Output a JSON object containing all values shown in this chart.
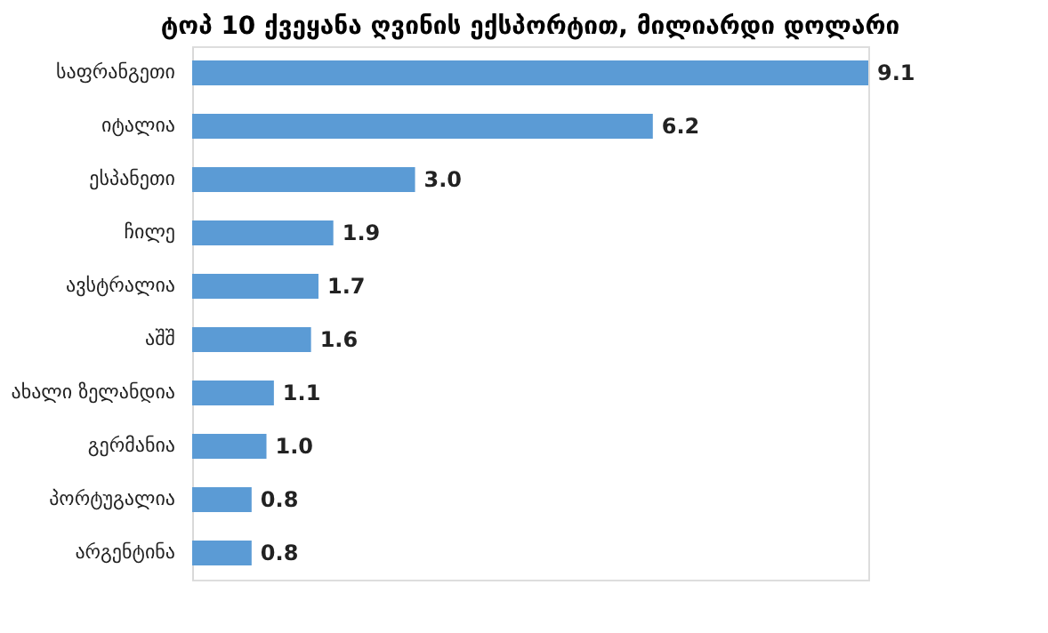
{
  "chart_data": {
    "type": "bar",
    "orientation": "horizontal",
    "title": "ტოპ 10 ქვეყანა ღვინის ექსპორტით, მილიარდი დოლარი",
    "categories": [
      "საფრანგეთი",
      "იტალია",
      "ესპანეთი",
      "ჩილე",
      "ავსტრალია",
      "აშშ",
      "ახალი ზელანდია",
      "გერმანია",
      "პორტუგალია",
      "არგენტინა"
    ],
    "values": [
      9.1,
      6.2,
      3.0,
      1.9,
      1.7,
      1.6,
      1.1,
      1.0,
      0.8,
      0.8
    ],
    "value_labels": [
      "9.1",
      "6.2",
      "3.0",
      "1.9",
      "1.7",
      "1.6",
      "1.1",
      "1.0",
      "0.8",
      "0.8"
    ],
    "color": "#5b9bd5",
    "grid": false,
    "tick_labels": "y"
  }
}
